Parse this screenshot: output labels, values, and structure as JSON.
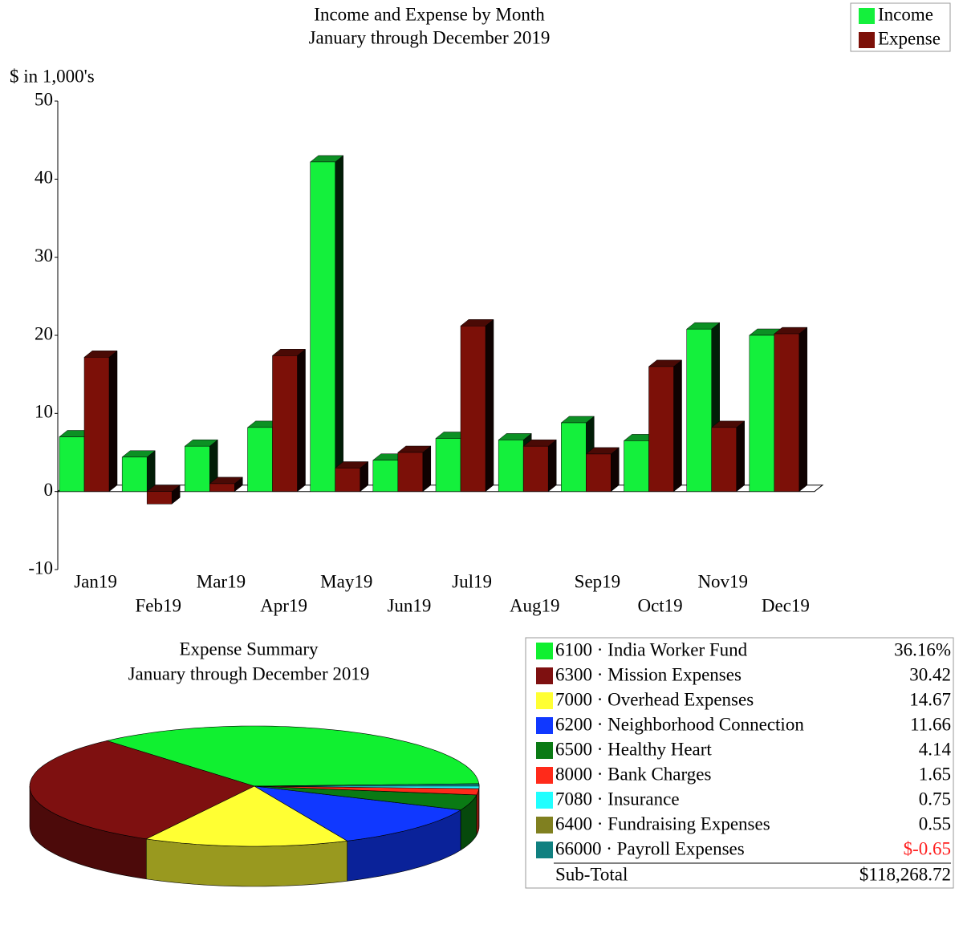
{
  "chart_data": [
    {
      "type": "bar",
      "title": "Income and Expense by Month",
      "subtitle": "January through December 2019",
      "y_label": "$ in 1,000's",
      "categories": [
        "Jan19",
        "Feb19",
        "Mar19",
        "Apr19",
        "May19",
        "Jun19",
        "Jul19",
        "Aug19",
        "Sep19",
        "Oct19",
        "Nov19",
        "Dec19"
      ],
      "series": [
        {
          "name": "Income",
          "color": "#14f03c",
          "values": [
            7.0,
            4.4,
            5.8,
            8.2,
            42.2,
            4.0,
            6.8,
            6.6,
            8.8,
            6.5,
            20.8,
            20.0
          ]
        },
        {
          "name": "Expense",
          "color": "#7c1008",
          "values": [
            17.2,
            -1.6,
            1.0,
            17.4,
            3.0,
            5.0,
            21.2,
            5.8,
            4.8,
            16.0,
            8.2,
            20.2
          ]
        }
      ],
      "ylim": [
        -10,
        50
      ],
      "yticks": [
        -10,
        0,
        10,
        20,
        30,
        40,
        50
      ],
      "grid": false,
      "legend": "top-right"
    },
    {
      "type": "pie",
      "title": "Expense Summary",
      "subtitle": "January through December 2019",
      "categories": [
        "6100 · India Worker Fund",
        "6300 · Mission Expenses",
        "7000 · Overhead Expenses",
        "6200 · Neighborhood Connection",
        "6500 · Healthy Heart",
        "8000 · Bank Charges",
        "7080 · Insurance",
        "6400 · Fundraising Expenses",
        "66000 · Payroll Expenses"
      ],
      "values": [
        36.16,
        30.42,
        14.67,
        11.66,
        4.14,
        1.65,
        0.75,
        0.55,
        -0.65
      ],
      "value_labels": [
        "36.16%",
        "30.42",
        "14.67",
        "11.66",
        "4.14",
        "1.65",
        "0.75",
        "0.55",
        "$-0.65"
      ],
      "colors": [
        "#10f030",
        "#7e1010",
        "#ffff33",
        "#1038ff",
        "#0a7a14",
        "#ff2a1a",
        "#20ffff",
        "#808020",
        "#108080"
      ],
      "negative_label_color": "#ff2020",
      "subtotal_label": "Sub-Total",
      "subtotal": {
        "value": 118268.72,
        "label": "$118,268.72"
      }
    }
  ]
}
